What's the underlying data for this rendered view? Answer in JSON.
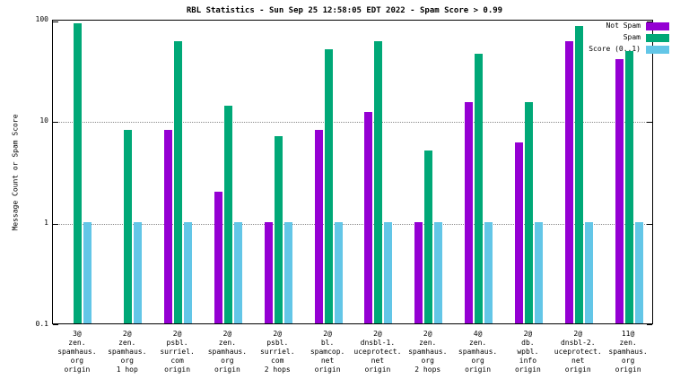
{
  "chart_data": {
    "type": "bar",
    "title": "RBL Statistics - Sun Sep 25 12:58:05 EDT 2022 - Spam Score > 0.99",
    "ylabel": "Message Count or Spam Score",
    "yscale": "log",
    "ylim": [
      0.1,
      100
    ],
    "yticks": [
      100,
      10,
      1,
      0.1
    ],
    "grid": "horizontal-dotted",
    "legend_position": "top-right",
    "categories": [
      [
        "3@",
        "zen.",
        "spamhaus.",
        "org",
        "origin"
      ],
      [
        "2@",
        "zen.",
        "spamhaus.",
        "org",
        "1 hop"
      ],
      [
        "2@",
        "psbl.",
        "surriel.",
        "com",
        "origin"
      ],
      [
        "2@",
        "zen.",
        "spamhaus.",
        "org",
        "origin"
      ],
      [
        "2@",
        "psbl.",
        "surriel.",
        "com",
        "2 hops"
      ],
      [
        "2@",
        "bl.",
        "spamcop.",
        "net",
        "origin"
      ],
      [
        "2@",
        "dnsbl-1.",
        "uceprotect.",
        "net",
        "origin"
      ],
      [
        "2@",
        "zen.",
        "spamhaus.",
        "org",
        "2 hops"
      ],
      [
        "4@",
        "zen.",
        "spamhaus.",
        "org",
        "origin"
      ],
      [
        "2@",
        "db.",
        "wpbl.",
        "info",
        "origin"
      ],
      [
        "2@",
        "dnsbl-2.",
        "uceprotect.",
        "net",
        "origin"
      ],
      [
        "11@",
        "zen.",
        "spamhaus.",
        "org",
        "origin"
      ]
    ],
    "series": [
      {
        "name": "Not Spam",
        "color": "#9400d3",
        "values": [
          null,
          null,
          8,
          2,
          1,
          8,
          12,
          1,
          15,
          6,
          60,
          40
        ]
      },
      {
        "name": "Spam",
        "color": "#00a877",
        "values": [
          90,
          8,
          60,
          14,
          7,
          50,
          60,
          5,
          45,
          15,
          85,
          48
        ]
      },
      {
        "name": "Score (0..1)",
        "color": "#63c6e7",
        "values": [
          1,
          1,
          1,
          1,
          1,
          1,
          1,
          1,
          1,
          1,
          1,
          1
        ]
      }
    ]
  }
}
